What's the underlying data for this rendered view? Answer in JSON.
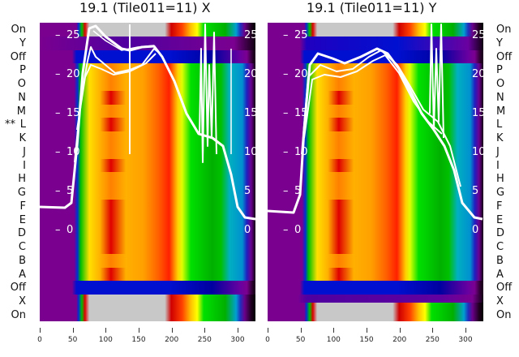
{
  "chart_data": [
    {
      "type": "heatmap",
      "title": "19.1 (Tile011=11) X",
      "row_labels": [
        "On",
        "Y",
        "Off",
        "P",
        "O",
        "N",
        "M",
        "L",
        "K",
        "J",
        "I",
        "H",
        "G",
        "F",
        "E",
        "D",
        "C",
        "B",
        "A",
        "Off",
        "X",
        "On"
      ],
      "row_marker": {
        "row": "L",
        "text": "**"
      },
      "xticks": [
        "0",
        "50",
        "100",
        "150",
        "200",
        "250",
        "300"
      ],
      "xlim": [
        0,
        327
      ],
      "yticks": [
        "25",
        "20",
        "15",
        "10",
        "5",
        "0"
      ]
    },
    {
      "type": "heatmap",
      "title": "19.1 (Tile011=11) Y",
      "row_labels": [
        "On",
        "Y",
        "Off",
        "P",
        "O",
        "N",
        "M",
        "L",
        "K",
        "J",
        "I",
        "H",
        "G",
        "F",
        "E",
        "D",
        "C",
        "B",
        "A",
        "Off",
        "X",
        "On"
      ],
      "xticks": [
        "0",
        "50",
        "100",
        "150",
        "200",
        "250",
        "300"
      ],
      "xlim": [
        0,
        327
      ],
      "yticks": [
        "25",
        "20",
        "15",
        "10",
        "5",
        "0"
      ]
    }
  ]
}
